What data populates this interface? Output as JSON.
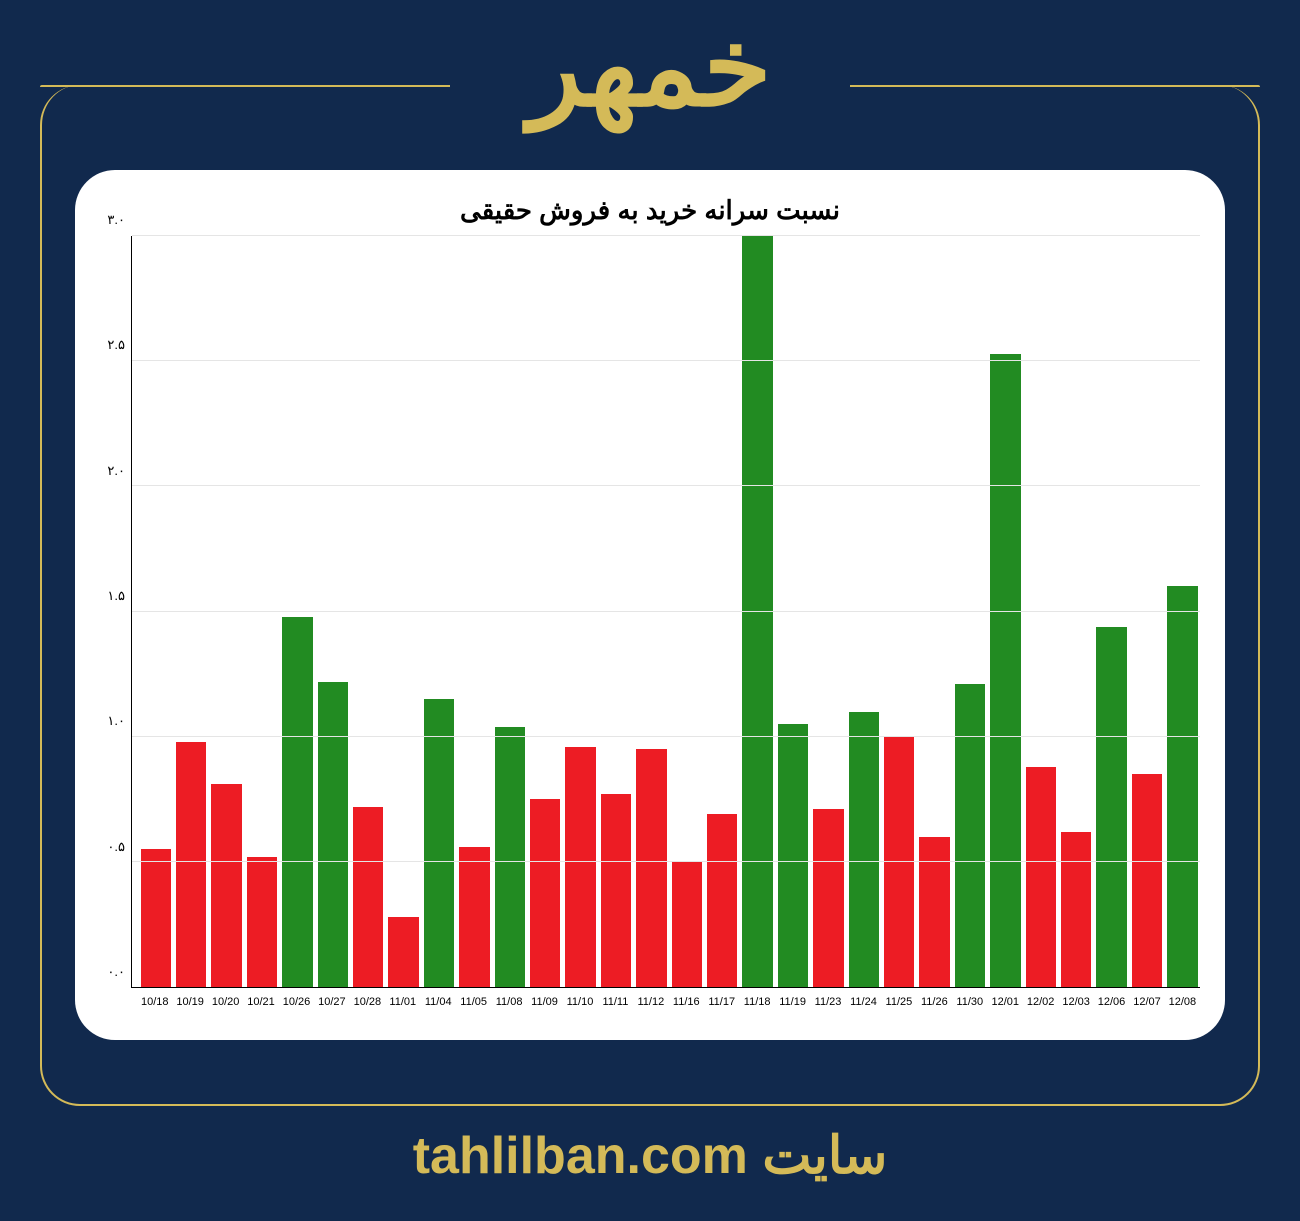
{
  "header": {
    "title": "خمهر"
  },
  "footer": {
    "text": "سایت tahlilban.com"
  },
  "chart": {
    "type": "bar",
    "title": "نسبت سرانه خرید به فروش حقیقی",
    "title_fontsize": 26,
    "title_color": "#000000",
    "background_color": "#ffffff",
    "grid_color": "#e5e5e5",
    "axis_color": "#000000",
    "ylim": [
      0.0,
      3.0
    ],
    "yticks": [
      0.0,
      0.5,
      1.0,
      1.5,
      2.0,
      2.5,
      3.0
    ],
    "ytick_labels": [
      "۰.۰",
      "۰.۵",
      "۱.۰",
      "۱.۵",
      "۲.۰",
      "۲.۵",
      "۳.۰"
    ],
    "categories": [
      "10/18",
      "10/19",
      "10/20",
      "10/21",
      "10/26",
      "10/27",
      "10/28",
      "11/01",
      "11/04",
      "11/05",
      "11/08",
      "11/09",
      "11/10",
      "11/11",
      "11/12",
      "11/16",
      "11/17",
      "11/18",
      "11/19",
      "11/23",
      "11/24",
      "11/25",
      "11/26",
      "11/30",
      "12/01",
      "12/02",
      "12/03",
      "12/06",
      "12/07",
      "12/08"
    ],
    "values": [
      0.55,
      0.98,
      0.81,
      0.52,
      1.48,
      1.22,
      0.72,
      0.28,
      1.15,
      0.56,
      1.04,
      0.75,
      0.96,
      0.77,
      0.95,
      0.5,
      0.69,
      3.0,
      1.05,
      0.71,
      1.1,
      1.0,
      0.6,
      1.21,
      2.53,
      0.88,
      0.62,
      1.44,
      0.85,
      1.6
    ],
    "bar_colors": [
      "#ed1c24",
      "#ed1c24",
      "#ed1c24",
      "#ed1c24",
      "#228b22",
      "#228b22",
      "#ed1c24",
      "#ed1c24",
      "#228b22",
      "#ed1c24",
      "#228b22",
      "#ed1c24",
      "#ed1c24",
      "#ed1c24",
      "#ed1c24",
      "#ed1c24",
      "#ed1c24",
      "#228b22",
      "#228b22",
      "#ed1c24",
      "#228b22",
      "#ed1c24",
      "#ed1c24",
      "#228b22",
      "#228b22",
      "#ed1c24",
      "#ed1c24",
      "#228b22",
      "#ed1c24",
      "#228b22"
    ],
    "xtick_fontsize": 11,
    "ytick_fontsize": 13,
    "bar_width": 0.85
  },
  "theme": {
    "page_background": "#11294d",
    "accent_color": "#d4ba58"
  }
}
